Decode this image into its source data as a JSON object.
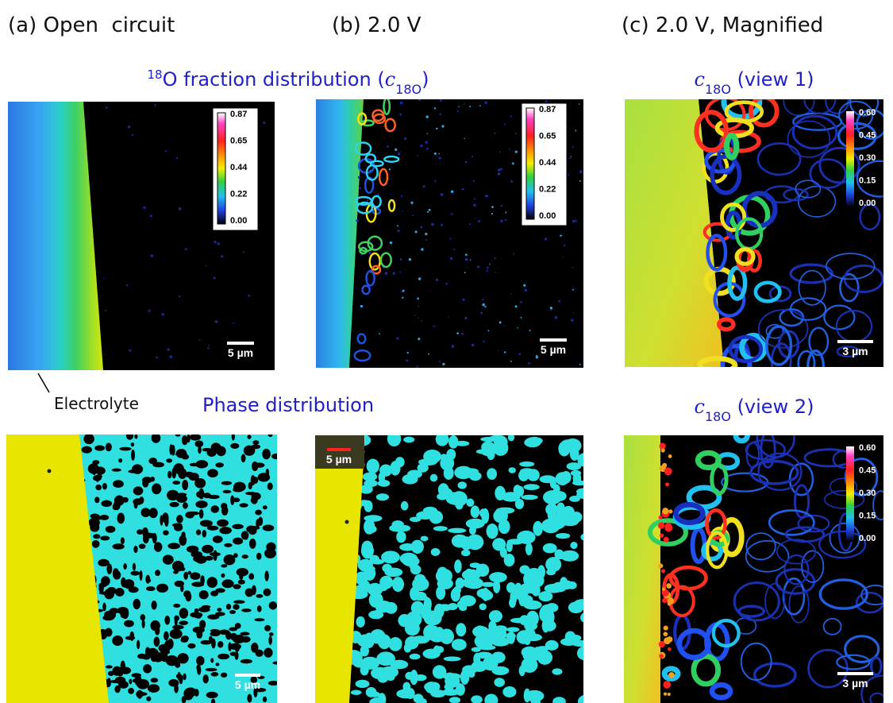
{
  "panel_labels": [
    "(a) Open  circuit",
    "(b) 2.0 V",
    "(c) 2.0 V, Magnified"
  ],
  "row1_title": {
    "superscript": "18",
    "text": "O fraction distribution (",
    "symbol": "c",
    "subscript": "18O",
    "close": ")"
  },
  "view1": {
    "symbol": "c",
    "subscript": "18O",
    "text": " (view 1)"
  },
  "view2": {
    "symbol": "c",
    "subscript": "18O",
    "text": " (view 2)"
  },
  "electrolyte_label": "Electrolyte",
  "row2_title": "Phase distribution",
  "colorbars": [
    {
      "ticks": [
        "0.87",
        "0.65",
        "0.44",
        "0.22",
        "0.00"
      ]
    },
    {
      "ticks": [
        "0.87",
        "0.65",
        "0.44",
        "0.22",
        "0.00"
      ]
    },
    {
      "ticks": [
        "0.60",
        "0.45",
        "0.30",
        "0.15",
        "0.00"
      ]
    },
    {
      "ticks": [
        "0.60",
        "0.45",
        "0.30",
        "0.15",
        "0.00"
      ]
    }
  ],
  "scale_bars": [
    "5 µm",
    "5 µm",
    "3 µm",
    "5 µm",
    "5 µm",
    "3 µm"
  ]
}
